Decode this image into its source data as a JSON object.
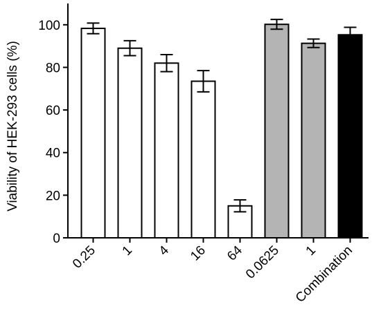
{
  "chart_data": {
    "type": "bar",
    "title": "",
    "xlabel": "",
    "ylabel": "Viability of HEK-293 cells (%)",
    "ylim": [
      0,
      110
    ],
    "yticks": [
      0,
      20,
      40,
      60,
      80,
      100
    ],
    "grid": false,
    "categories": [
      "0.25",
      "1",
      "4",
      "16",
      "64",
      "0.0625",
      "1",
      "Combination"
    ],
    "values": [
      98.3,
      89.0,
      82.0,
      73.5,
      15.0,
      100.2,
      91.3,
      95.3
    ],
    "errors": [
      2.5,
      3.5,
      4.0,
      5.0,
      2.8,
      2.3,
      2.0,
      3.5
    ],
    "fill_colors": [
      "#ffffff",
      "#ffffff",
      "#ffffff",
      "#ffffff",
      "#ffffff",
      "#b4b4b4",
      "#b4b4b4",
      "#000000"
    ]
  }
}
